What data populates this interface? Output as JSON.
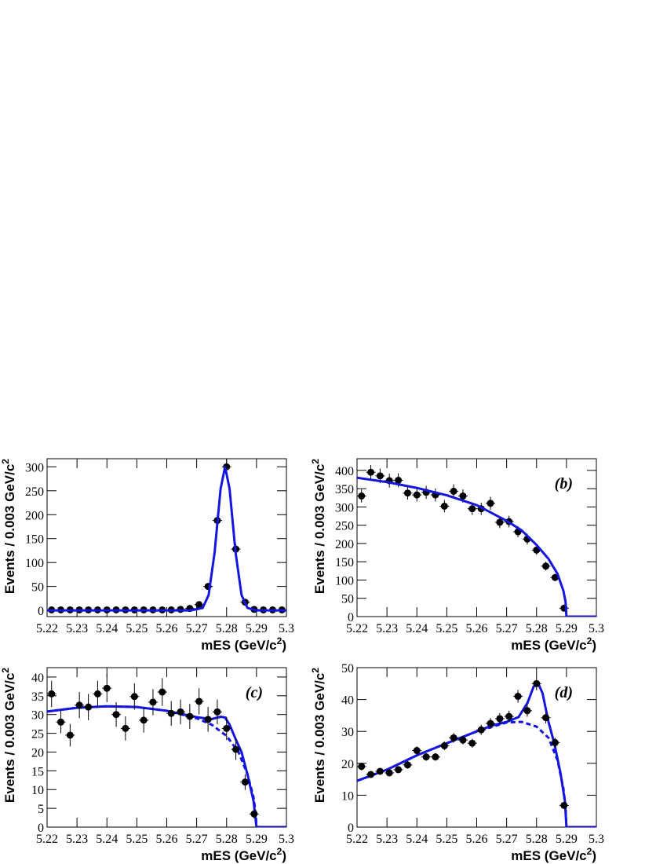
{
  "chart_data": [
    {
      "type": "scatter",
      "xlabel": [
        "mES (GeV/c",
        "2",
        ")"
      ],
      "ylabel": [
        "Events / 0.003 GeV/c",
        "2"
      ],
      "xlim": [
        5.22,
        5.3
      ],
      "ylim": [
        -13,
        317
      ],
      "xticks": [
        5.22,
        5.23,
        5.24,
        5.25,
        5.26,
        5.27,
        5.28,
        5.29,
        5.3
      ],
      "yticks": [
        0,
        50,
        100,
        150,
        200,
        250,
        300
      ],
      "series": [
        {
          "type": "errorbar",
          "color": "#000000",
          "x": [
            5.2215,
            5.2246,
            5.2277,
            5.2308,
            5.2338,
            5.2369,
            5.24,
            5.2431,
            5.2462,
            5.2492,
            5.2523,
            5.2554,
            5.2585,
            5.2615,
            5.2646,
            5.2677,
            5.2708,
            5.2738,
            5.2769,
            5.28,
            5.2831,
            5.2862,
            5.2892,
            5.2923,
            5.2954,
            5.2985
          ],
          "values": [
            1,
            1,
            1,
            1,
            1,
            1,
            1,
            1,
            1,
            1,
            1,
            1,
            1,
            1,
            2,
            4,
            12,
            50,
            188,
            300,
            128,
            17,
            2,
            1,
            1,
            1
          ],
          "errors": [
            1,
            1,
            1,
            1,
            1,
            1,
            1,
            1,
            1,
            1,
            1,
            1,
            1,
            1,
            1.4,
            2,
            3.5,
            7,
            13.7,
            17.3,
            11.3,
            4.1,
            1.4,
            1,
            1,
            1
          ]
        },
        {
          "type": "line",
          "color": "#1515e0",
          "dashed": false,
          "x": [
            5.22,
            5.24,
            5.26,
            5.268,
            5.272,
            5.274,
            5.276,
            5.278,
            5.2795,
            5.281,
            5.283,
            5.285,
            5.287,
            5.29,
            5.3
          ],
          "values": [
            0,
            0,
            0,
            0,
            5,
            32,
            121,
            254,
            300,
            254,
            121,
            32,
            5,
            0,
            0
          ]
        }
      ]
    },
    {
      "type": "scatter",
      "label": "(b)",
      "xlabel": [
        "mES (GeV/c",
        "2",
        ")"
      ],
      "ylabel": [
        "Events / 0.003 GeV/c",
        "2"
      ],
      "xlim": [
        5.22,
        5.3
      ],
      "ylim": [
        0,
        432
      ],
      "xticks": [
        5.22,
        5.23,
        5.24,
        5.25,
        5.26,
        5.27,
        5.28,
        5.29,
        5.3
      ],
      "yticks": [
        0,
        50,
        100,
        150,
        200,
        250,
        300,
        350,
        400
      ],
      "series": [
        {
          "type": "errorbar",
          "color": "#000000",
          "x": [
            5.2215,
            5.2246,
            5.2277,
            5.2308,
            5.2338,
            5.2369,
            5.24,
            5.2431,
            5.2462,
            5.2492,
            5.2523,
            5.2554,
            5.2585,
            5.2615,
            5.2646,
            5.2677,
            5.2708,
            5.2738,
            5.2769,
            5.28,
            5.2831,
            5.2862,
            5.2892
          ],
          "values": [
            330,
            395,
            385,
            372,
            373,
            338,
            333,
            340,
            333,
            302,
            343,
            330,
            295,
            295,
            310,
            258,
            260,
            232,
            212,
            182,
            138,
            107,
            23
          ],
          "errors": [
            18,
            20,
            20,
            19,
            19,
            18,
            18,
            18,
            18,
            17,
            19,
            18,
            17,
            17,
            18,
            16,
            16,
            15,
            15,
            13,
            12,
            10,
            5
          ]
        },
        {
          "type": "line",
          "color": "#1515e0",
          "dashed": false,
          "x": [
            5.22,
            5.23,
            5.24,
            5.25,
            5.26,
            5.27,
            5.275,
            5.28,
            5.284,
            5.287,
            5.289,
            5.2897,
            5.29,
            5.3
          ],
          "values": [
            380,
            368,
            352,
            332,
            305,
            262,
            236,
            196,
            158,
            117,
            70,
            40,
            0,
            0
          ]
        }
      ]
    },
    {
      "type": "scatter",
      "label": "(c)",
      "xlabel": [
        "mES (GeV/c",
        "2",
        ")"
      ],
      "ylabel": [
        "Events / 0.003 GeV/c",
        "2"
      ],
      "xlim": [
        5.22,
        5.3
      ],
      "ylim": [
        0,
        42.5
      ],
      "xticks": [
        5.22,
        5.23,
        5.24,
        5.25,
        5.26,
        5.27,
        5.28,
        5.29,
        5.3
      ],
      "yticks": [
        0,
        5,
        10,
        15,
        20,
        25,
        30,
        35,
        40
      ],
      "series": [
        {
          "type": "line",
          "color": "#1515e0",
          "dashed": true,
          "x": [
            5.22,
            5.23,
            5.24,
            5.25,
            5.26,
            5.27,
            5.275,
            5.28,
            5.284,
            5.287,
            5.289,
            5.2897,
            5.29,
            5.3
          ],
          "values": [
            30.8,
            31.8,
            32.2,
            32,
            31,
            29,
            27.3,
            24.3,
            20,
            14,
            8,
            4,
            0,
            0
          ]
        },
        {
          "type": "line",
          "color": "#1515e0",
          "dashed": false,
          "x": [
            5.22,
            5.23,
            5.24,
            5.25,
            5.26,
            5.27,
            5.275,
            5.278,
            5.2795,
            5.281,
            5.283,
            5.285,
            5.287,
            5.289,
            5.29,
            5.3
          ],
          "values": [
            30.8,
            31.8,
            32.2,
            32,
            31,
            29.3,
            28.8,
            29.4,
            29.2,
            27.3,
            23.5,
            20,
            14,
            7,
            0,
            0
          ]
        },
        {
          "type": "errorbar",
          "color": "#000000",
          "x": [
            5.2215,
            5.2246,
            5.2277,
            5.2308,
            5.2338,
            5.2369,
            5.24,
            5.2431,
            5.2462,
            5.2492,
            5.2523,
            5.2554,
            5.2585,
            5.2615,
            5.2646,
            5.2677,
            5.2708,
            5.2738,
            5.2769,
            5.28,
            5.2831,
            5.2862,
            5.2892
          ],
          "values": [
            35.5,
            28,
            24.5,
            32.5,
            32,
            35.5,
            37,
            30,
            26.3,
            34.8,
            28.5,
            33.3,
            36,
            30.3,
            30.7,
            29.5,
            33.5,
            28.7,
            30.7,
            26.3,
            20.7,
            12,
            3.5
          ],
          "errors": [
            3.5,
            3,
            3,
            3.5,
            3.5,
            3.5,
            3.7,
            3.3,
            3.2,
            3.5,
            3.3,
            3.5,
            3.7,
            3.3,
            3.3,
            3.3,
            3.5,
            3.3,
            3.3,
            3.1,
            2.8,
            2.1,
            1.2
          ]
        }
      ]
    },
    {
      "type": "scatter",
      "label": "(d)",
      "xlabel": [
        "mES (GeV/c",
        "2",
        ")"
      ],
      "ylabel": [
        "Events / 0.003 GeV/c",
        "2"
      ],
      "xlim": [
        5.22,
        5.3
      ],
      "ylim": [
        0,
        50
      ],
      "xticks": [
        5.22,
        5.23,
        5.24,
        5.25,
        5.26,
        5.27,
        5.28,
        5.29,
        5.3
      ],
      "yticks": [
        0,
        10,
        20,
        30,
        40,
        50
      ],
      "series": [
        {
          "type": "line",
          "color": "#1515e0",
          "dashed": true,
          "x": [
            5.22,
            5.23,
            5.24,
            5.25,
            5.26,
            5.27,
            5.275,
            5.28,
            5.284,
            5.287,
            5.289,
            5.2897,
            5.29,
            5.3
          ],
          "values": [
            14.5,
            18,
            22.5,
            26.3,
            30,
            32.8,
            33,
            31.5,
            28,
            21,
            12,
            6,
            0,
            0
          ]
        },
        {
          "type": "line",
          "color": "#1515e0",
          "dashed": false,
          "x": [
            5.22,
            5.23,
            5.24,
            5.25,
            5.26,
            5.265,
            5.27,
            5.274,
            5.277,
            5.279,
            5.2805,
            5.282,
            5.284,
            5.286,
            5.288,
            5.2895,
            5.29,
            5.3
          ],
          "values": [
            14.5,
            18,
            22.5,
            26.3,
            30,
            31.8,
            33,
            34.5,
            39,
            44,
            45.2,
            42,
            33,
            26,
            17,
            8,
            0,
            0
          ]
        },
        {
          "type": "errorbar",
          "color": "#000000",
          "x": [
            5.2215,
            5.2246,
            5.2277,
            5.2308,
            5.2338,
            5.2369,
            5.24,
            5.2431,
            5.2462,
            5.2492,
            5.2523,
            5.2554,
            5.2585,
            5.2615,
            5.2646,
            5.2677,
            5.2708,
            5.2738,
            5.2769,
            5.28,
            5.2831,
            5.2862,
            5.2892
          ],
          "values": [
            19,
            16.5,
            17.5,
            17,
            18,
            19.5,
            24,
            22,
            22,
            25.5,
            28,
            27.3,
            26.3,
            30.5,
            32.5,
            34,
            34.7,
            41,
            36.5,
            45,
            34.3,
            26.5,
            6.8
          ],
          "errors": [
            1.2,
            1,
            1,
            1,
            1,
            1.2,
            1.3,
            1.2,
            1.2,
            1.4,
            1.5,
            1.4,
            1.4,
            1.6,
            1.7,
            1.8,
            1.8,
            2,
            1.9,
            2.1,
            1.8,
            1.5,
            0.8
          ]
        }
      ]
    }
  ]
}
